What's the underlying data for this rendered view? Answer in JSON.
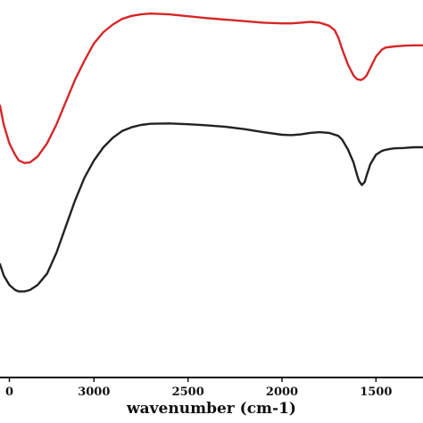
{
  "chart_data": {
    "type": "line",
    "title": "",
    "xlabel": "wavenumber (cm-1)",
    "ylabel": "",
    "x_reversed": true,
    "xlim": [
      3500,
      1250
    ],
    "ylim": [
      0,
      1
    ],
    "grid": false,
    "x_ticks": [
      {
        "value": 3000,
        "label": "3000"
      },
      {
        "value": 2500,
        "label": "2500"
      },
      {
        "value": 2000,
        "label": "2000"
      },
      {
        "value": 1500,
        "label": "1500"
      }
    ],
    "edge_tick": {
      "value": 3450,
      "label": "0"
    },
    "series": [
      {
        "color": "#d62728",
        "x": [
          3500,
          3480,
          3450,
          3420,
          3400,
          3370,
          3340,
          3300,
          3250,
          3200,
          3150,
          3100,
          3050,
          3000,
          2950,
          2900,
          2850,
          2800,
          2750,
          2700,
          2600,
          2500,
          2400,
          2300,
          2200,
          2100,
          2000,
          1950,
          1900,
          1850,
          1800,
          1750,
          1720,
          1700,
          1680,
          1650,
          1620,
          1600,
          1580,
          1565,
          1550,
          1530,
          1500,
          1470,
          1450,
          1420,
          1400,
          1350,
          1300,
          1250
        ],
        "y": [
          0.72,
          0.67,
          0.62,
          0.59,
          0.575,
          0.568,
          0.57,
          0.585,
          0.62,
          0.67,
          0.73,
          0.79,
          0.84,
          0.885,
          0.915,
          0.935,
          0.95,
          0.958,
          0.962,
          0.964,
          0.962,
          0.957,
          0.952,
          0.948,
          0.944,
          0.94,
          0.938,
          0.938,
          0.94,
          0.942,
          0.94,
          0.932,
          0.92,
          0.9,
          0.87,
          0.83,
          0.8,
          0.79,
          0.788,
          0.792,
          0.8,
          0.82,
          0.85,
          0.868,
          0.874,
          0.876,
          0.877,
          0.879,
          0.88,
          0.88
        ]
      },
      {
        "color": "#222222",
        "x": [
          3500,
          3480,
          3450,
          3420,
          3400,
          3370,
          3340,
          3300,
          3250,
          3200,
          3150,
          3100,
          3050,
          3000,
          2950,
          2900,
          2850,
          2800,
          2750,
          2700,
          2600,
          2500,
          2400,
          2300,
          2200,
          2100,
          2000,
          1950,
          1900,
          1850,
          1800,
          1750,
          1700,
          1680,
          1650,
          1620,
          1600,
          1590,
          1575,
          1560,
          1550,
          1530,
          1500,
          1470,
          1450,
          1420,
          1400,
          1350,
          1300,
          1250
        ],
        "y": [
          0.3,
          0.27,
          0.245,
          0.232,
          0.228,
          0.228,
          0.232,
          0.245,
          0.275,
          0.33,
          0.4,
          0.47,
          0.53,
          0.575,
          0.61,
          0.635,
          0.653,
          0.663,
          0.669,
          0.672,
          0.673,
          0.671,
          0.668,
          0.664,
          0.658,
          0.65,
          0.643,
          0.642,
          0.644,
          0.648,
          0.65,
          0.648,
          0.64,
          0.63,
          0.605,
          0.57,
          0.535,
          0.52,
          0.51,
          0.518,
          0.535,
          0.565,
          0.59,
          0.6,
          0.603,
          0.606,
          0.607,
          0.608,
          0.61,
          0.61
        ]
      }
    ]
  }
}
